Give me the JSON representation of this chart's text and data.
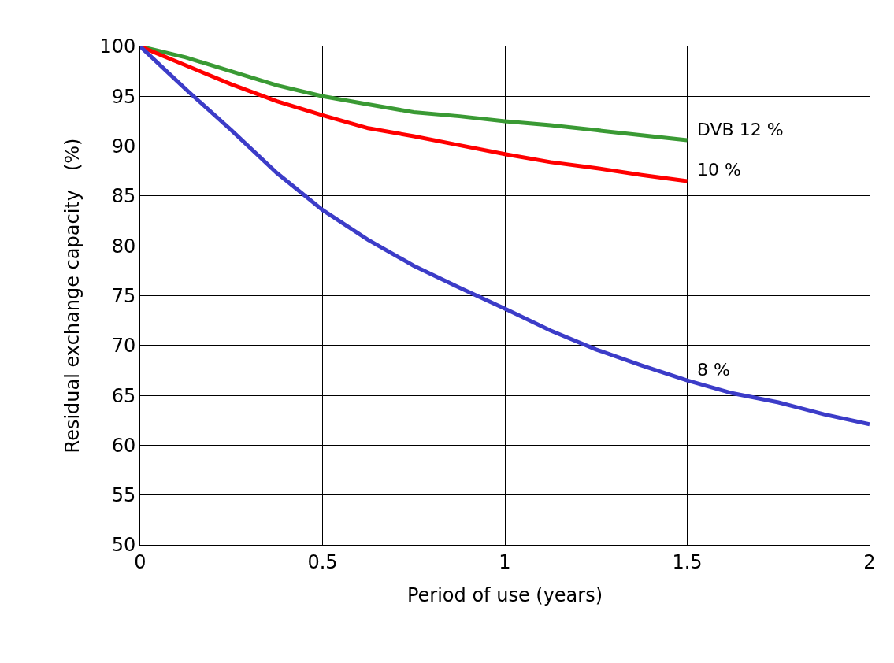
{
  "chart_data": {
    "type": "line",
    "xlabel": "Period of use (years)",
    "ylabel": "Residual exchange capacity　(%)",
    "x": [
      0,
      0.125,
      0.25,
      0.375,
      0.5,
      0.625,
      0.75,
      0.875,
      1,
      1.125,
      1.25,
      1.375,
      1.5,
      1.625,
      1.75,
      1.875,
      2
    ],
    "series": [
      {
        "name": "DVB 12 %",
        "color": "#3a9a34",
        "values": [
          100,
          98.9,
          97.5,
          96.1,
          95.0,
          94.2,
          93.4,
          93.0,
          92.5,
          92.1,
          91.6,
          91.1,
          90.6,
          null,
          null,
          null,
          null
        ]
      },
      {
        "name": "10 %",
        "color": "#ff0000",
        "values": [
          100,
          98.1,
          96.2,
          94.5,
          93.1,
          91.8,
          91.0,
          90.1,
          89.2,
          88.4,
          87.8,
          87.1,
          86.5,
          null,
          null,
          null,
          null
        ]
      },
      {
        "name": "8 %",
        "color": "#3c3cc8",
        "values": [
          100,
          95.7,
          91.6,
          87.3,
          83.6,
          80.6,
          78.0,
          75.8,
          73.7,
          71.5,
          69.6,
          68.0,
          66.5,
          65.2,
          64.3,
          63.1,
          62.1
        ]
      }
    ],
    "xlim": [
      0,
      2
    ],
    "xticks": [
      0,
      0.5,
      1,
      1.5,
      2
    ],
    "ylim": [
      50,
      100
    ],
    "yticks": [
      50,
      55,
      60,
      65,
      70,
      75,
      80,
      85,
      90,
      95,
      100
    ],
    "grid": true,
    "legend": false,
    "marker": "none",
    "line_style": "solid"
  }
}
